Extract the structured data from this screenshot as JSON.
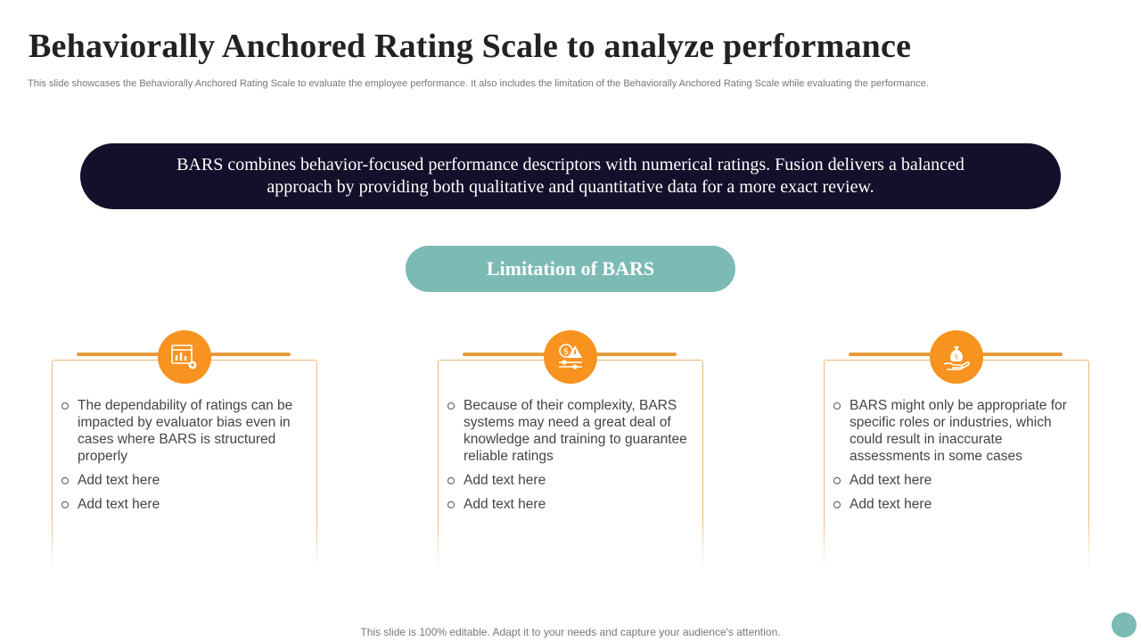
{
  "slide": {
    "title": "Behaviorally Anchored Rating Scale to analyze performance",
    "subtitle": "This slide showcases the Behaviorally Anchored Rating Scale to evaluate the employee performance. It also includes the limitation of the Behaviorally Anchored Rating Scale while evaluating the performance.",
    "banner_text": "BARS combines behavior-focused performance descriptors with numerical ratings. Fusion delivers a balanced approach by providing both qualitative and quantitative data for a more exact review.",
    "section_label": "Limitation of BARS",
    "footer": "This slide is 100% editable. Adapt it to your needs and capture your audience's attention."
  },
  "colors": {
    "banner_bg": "#12102a",
    "accent_orange": "#f7931e",
    "teal": "#7bbab5",
    "card_border": "#f0b777"
  },
  "cards": [
    {
      "icon": "chart-gear-icon",
      "items": [
        "The dependability of ratings can be impacted by evaluator bias even in cases where BARS is structured properly",
        "Add text here",
        "Add text here"
      ]
    },
    {
      "icon": "dollar-warning-icon",
      "items": [
        "Because of their complexity, BARS systems may need a great deal of knowledge and training to guarantee reliable ratings",
        "Add text here",
        "Add text here"
      ]
    },
    {
      "icon": "money-bag-hand-icon",
      "items": [
        "BARS might only be appropriate for specific roles or industries, which could result in inaccurate assessments in some cases",
        "Add text here",
        "Add text here"
      ]
    }
  ]
}
